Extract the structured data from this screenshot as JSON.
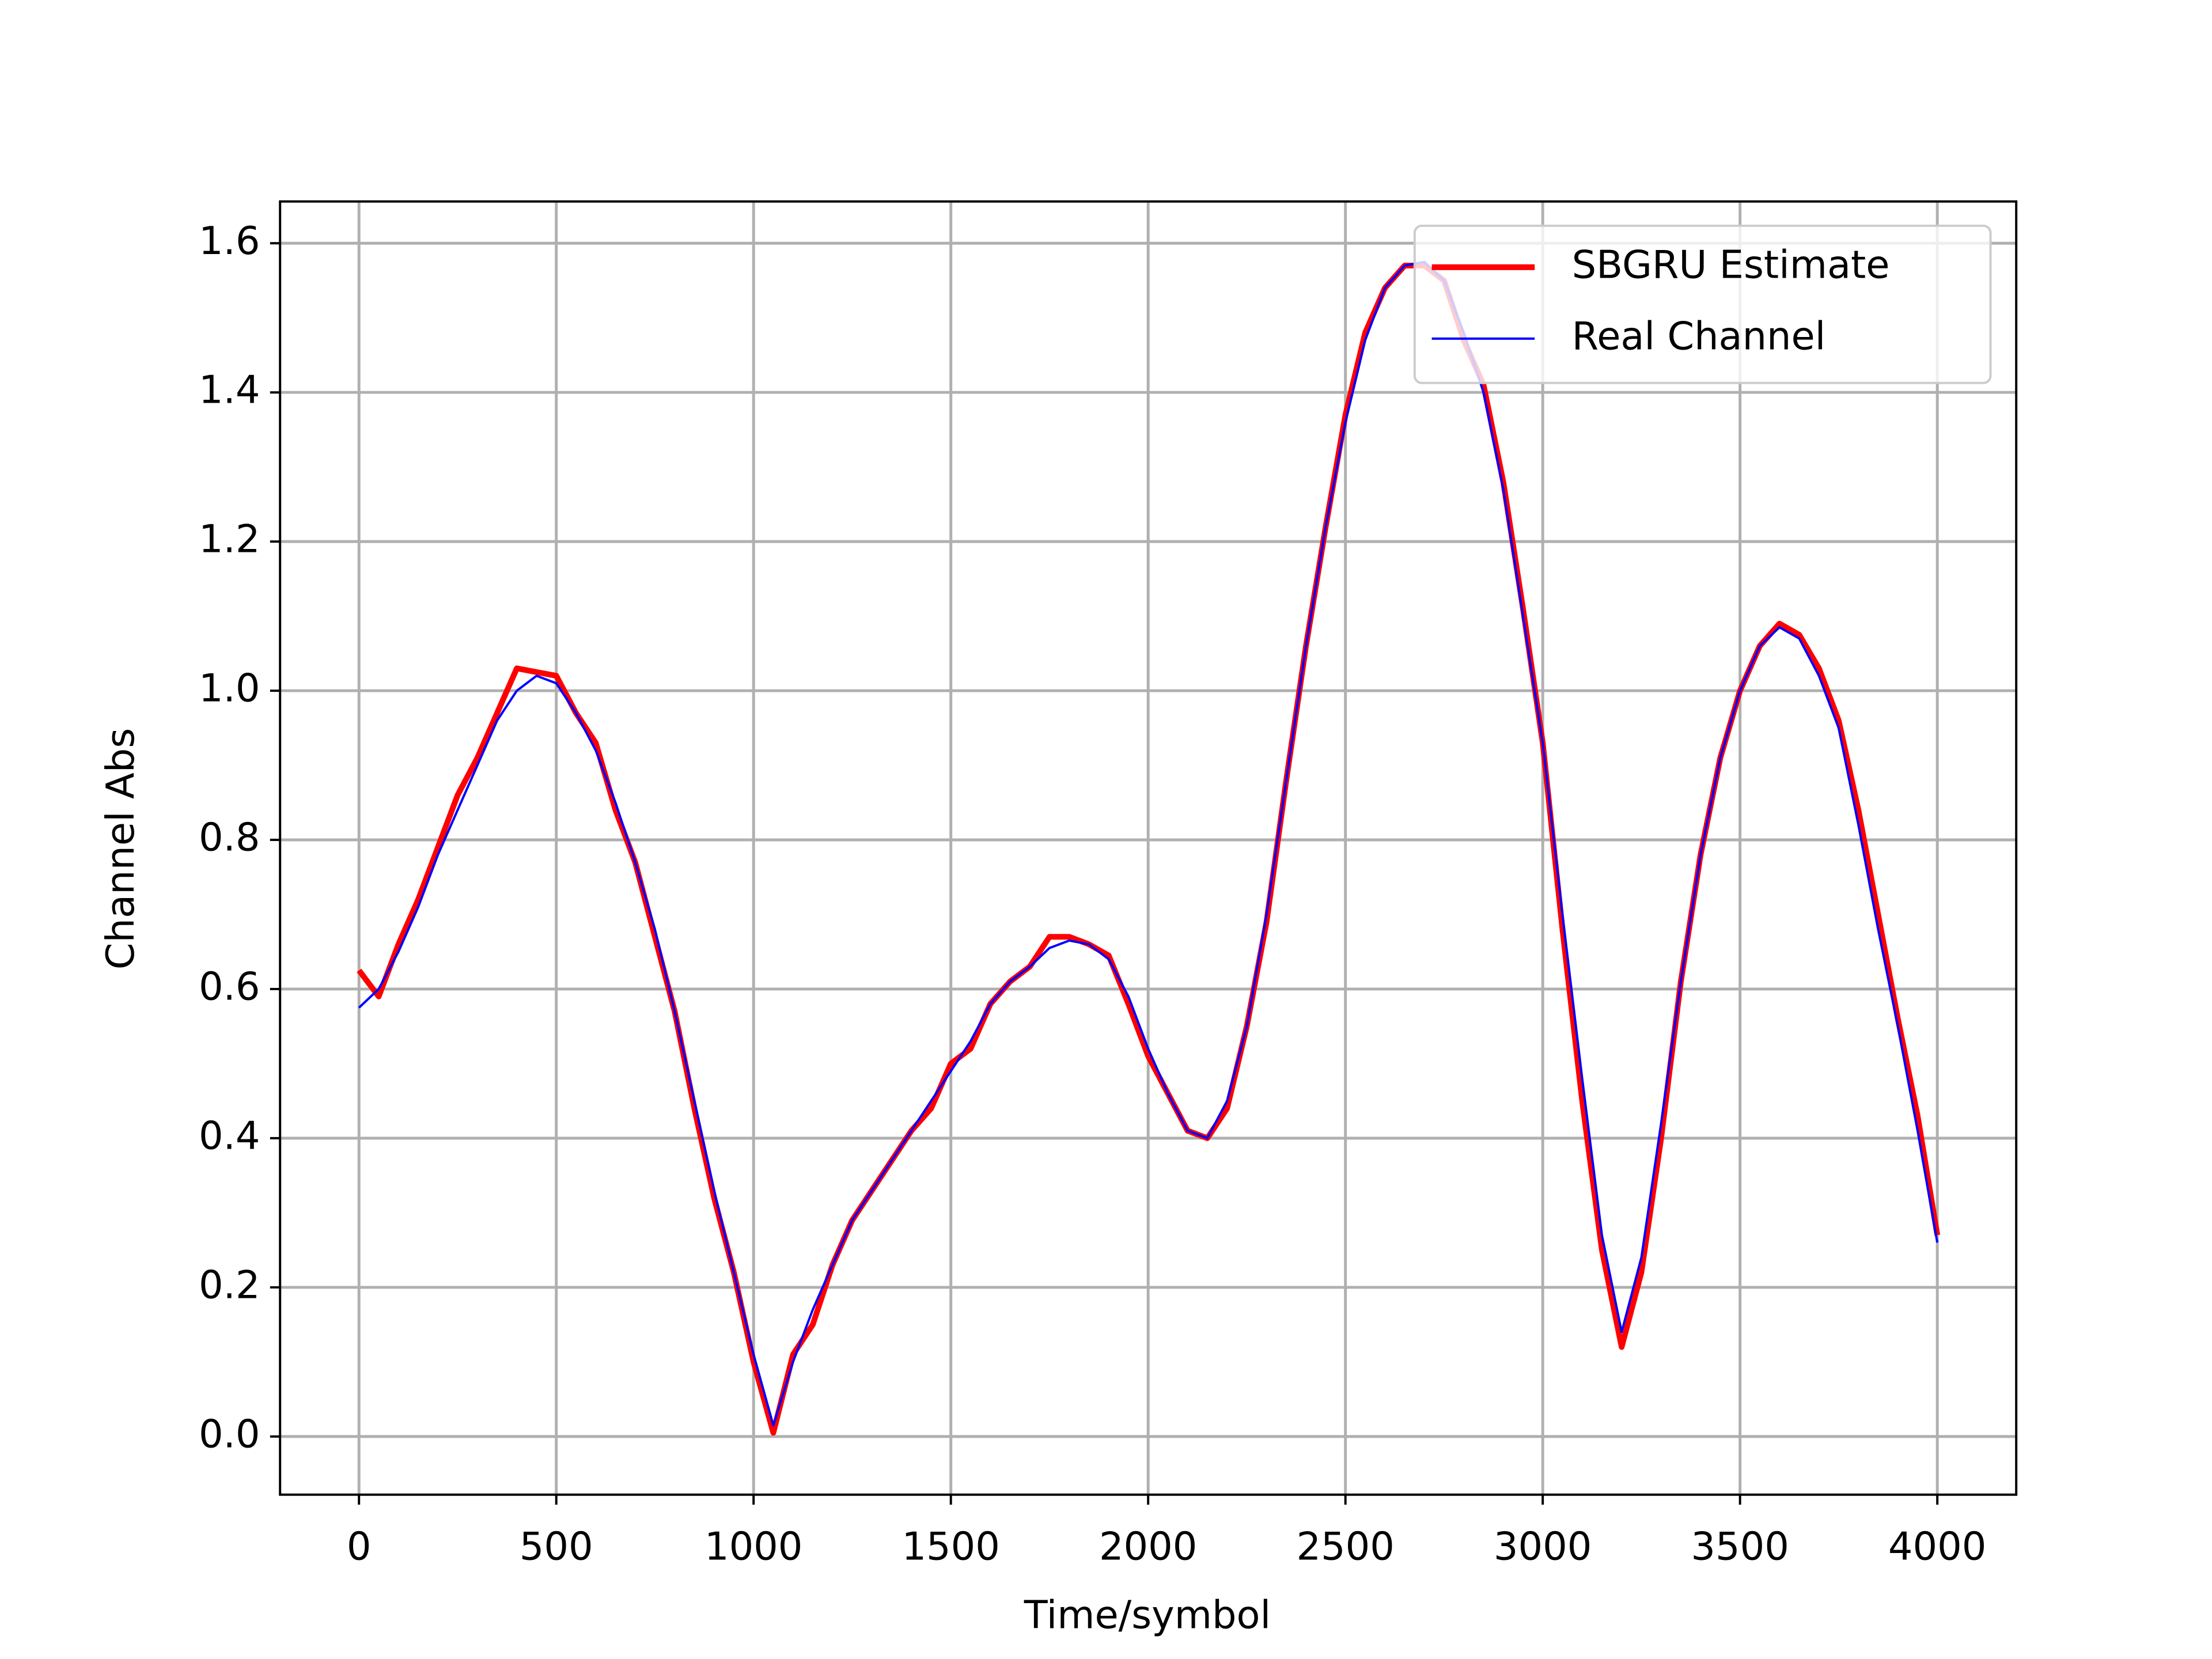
{
  "chart_data": {
    "type": "line",
    "xlabel": "Time/symbol",
    "ylabel": "Channel Abs",
    "x": [
      0,
      50,
      100,
      150,
      200,
      250,
      300,
      350,
      400,
      450,
      500,
      550,
      600,
      650,
      700,
      750,
      800,
      850,
      900,
      950,
      1000,
      1050,
      1100,
      1150,
      1200,
      1250,
      1300,
      1350,
      1400,
      1450,
      1500,
      1550,
      1600,
      1650,
      1700,
      1750,
      1800,
      1850,
      1900,
      1950,
      2000,
      2050,
      2100,
      2150,
      2200,
      2250,
      2300,
      2350,
      2400,
      2450,
      2500,
      2550,
      2600,
      2650,
      2700,
      2750,
      2800,
      2850,
      2900,
      2950,
      3000,
      3050,
      3100,
      3150,
      3200,
      3250,
      3300,
      3350,
      3400,
      3450,
      3500,
      3550,
      3600,
      3650,
      3700,
      3750,
      3800,
      3850,
      3900,
      3950,
      4000
    ],
    "series": [
      {
        "name": "SBGRU Estimate",
        "color": "#ff0000",
        "width": 4,
        "values": [
          0.625,
          0.59,
          0.66,
          0.72,
          0.79,
          0.86,
          0.91,
          0.97,
          1.03,
          1.025,
          1.02,
          0.97,
          0.93,
          0.84,
          0.77,
          0.67,
          0.57,
          0.44,
          0.32,
          0.22,
          0.1,
          0.005,
          0.11,
          0.15,
          0.23,
          0.29,
          0.33,
          0.37,
          0.41,
          0.44,
          0.5,
          0.52,
          0.58,
          0.61,
          0.63,
          0.67,
          0.67,
          0.66,
          0.645,
          0.58,
          0.51,
          0.46,
          0.41,
          0.4,
          0.44,
          0.55,
          0.69,
          0.88,
          1.06,
          1.22,
          1.37,
          1.48,
          1.54,
          1.57,
          1.57,
          1.55,
          1.47,
          1.41,
          1.28,
          1.11,
          0.93,
          0.68,
          0.45,
          0.25,
          0.12,
          0.22,
          0.4,
          0.61,
          0.78,
          0.91,
          1.0,
          1.06,
          1.09,
          1.075,
          1.03,
          0.96,
          0.84,
          0.7,
          0.56,
          0.43,
          0.27
        ]
      },
      {
        "name": "Real Channel",
        "color": "#0000ff",
        "width": 1.6,
        "values": [
          0.575,
          0.6,
          0.65,
          0.71,
          0.78,
          0.84,
          0.9,
          0.96,
          1.0,
          1.02,
          1.01,
          0.97,
          0.92,
          0.85,
          0.77,
          0.68,
          0.57,
          0.45,
          0.33,
          0.22,
          0.11,
          0.015,
          0.1,
          0.17,
          0.23,
          0.29,
          0.33,
          0.37,
          0.41,
          0.45,
          0.49,
          0.53,
          0.58,
          0.61,
          0.63,
          0.655,
          0.665,
          0.66,
          0.64,
          0.59,
          0.52,
          0.46,
          0.41,
          0.4,
          0.45,
          0.55,
          0.7,
          0.88,
          1.06,
          1.22,
          1.36,
          1.47,
          1.54,
          1.57,
          1.575,
          1.55,
          1.48,
          1.4,
          1.27,
          1.1,
          0.93,
          0.7,
          0.48,
          0.27,
          0.14,
          0.24,
          0.42,
          0.61,
          0.78,
          0.91,
          1.0,
          1.06,
          1.085,
          1.07,
          1.02,
          0.95,
          0.82,
          0.68,
          0.55,
          0.41,
          0.26
        ]
      }
    ],
    "xlim": [
      -200,
      4200
    ],
    "xticks": [
      0,
      500,
      1000,
      1500,
      2000,
      2500,
      3000,
      3500,
      4000
    ],
    "ylim": [
      -0.078,
      1.656
    ],
    "yticks": [
      {
        "value": 0,
        "label": "0.0"
      },
      0.2,
      0.4,
      0.6,
      0.8,
      {
        "value": 1,
        "label": "1.0"
      },
      1.2,
      1.4,
      1.6
    ],
    "grid": true,
    "legend": "upper right"
  }
}
